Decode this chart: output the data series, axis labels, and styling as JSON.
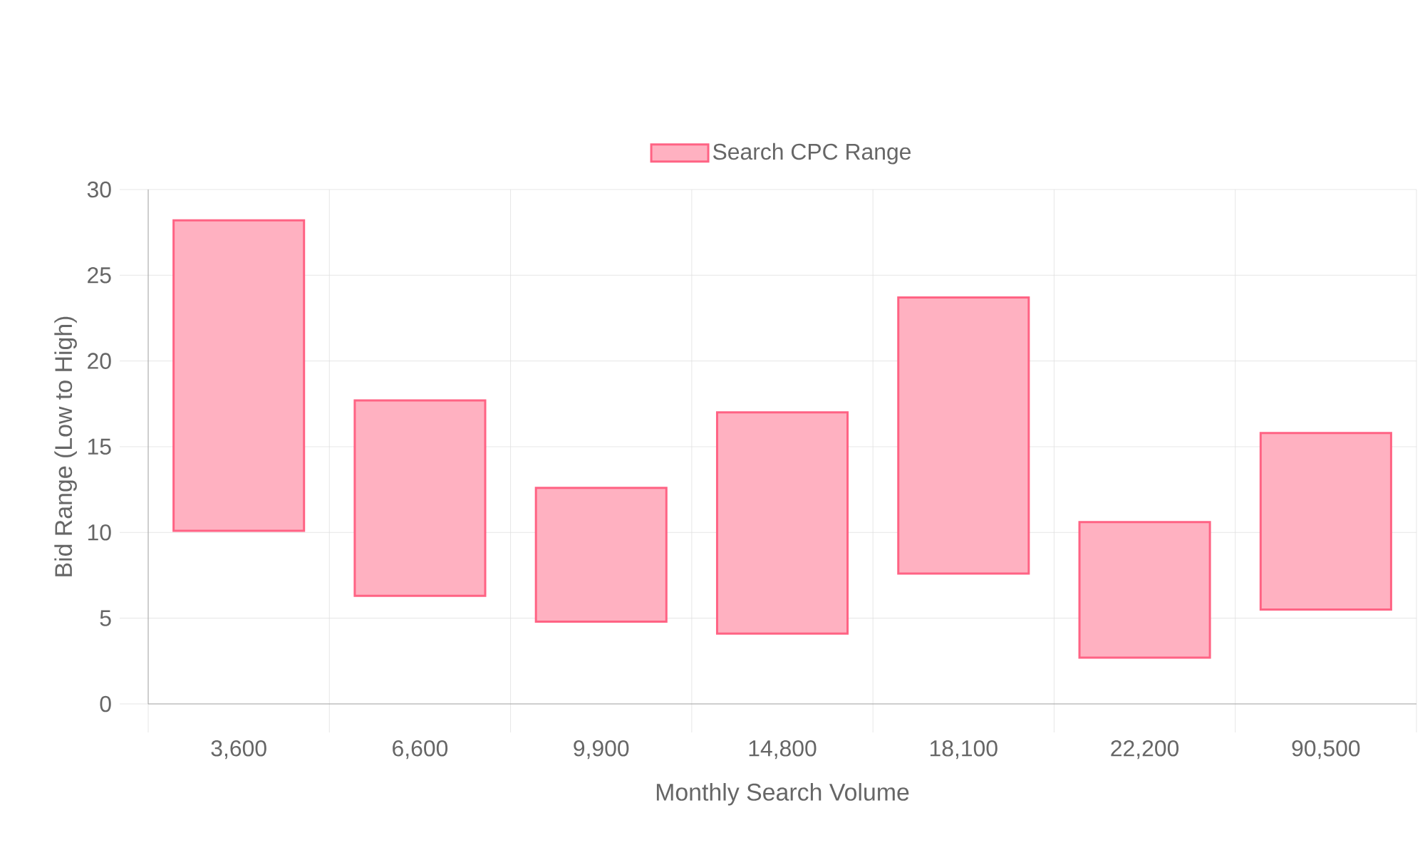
{
  "chart_data": {
    "type": "bar",
    "xlabel": "Monthly Search Volume",
    "ylabel": "Bid Range (Low to High)",
    "categories": [
      "3,600",
      "6,600",
      "9,900",
      "14,800",
      "18,100",
      "22,200",
      "90,500"
    ],
    "series": [
      {
        "name": "Search CPC Range",
        "color": "#ff6384",
        "base": [
          10.1,
          6.3,
          4.8,
          4.1,
          7.6,
          2.7,
          5.5
        ],
        "values": [
          18.1,
          11.4,
          7.8,
          12.9,
          16.1,
          7.9,
          10.3
        ]
      }
    ],
    "ylim": [
      0,
      30
    ],
    "yticks": [
      0,
      5,
      10,
      15,
      20,
      25,
      30
    ],
    "grid": true,
    "legend": "top"
  }
}
